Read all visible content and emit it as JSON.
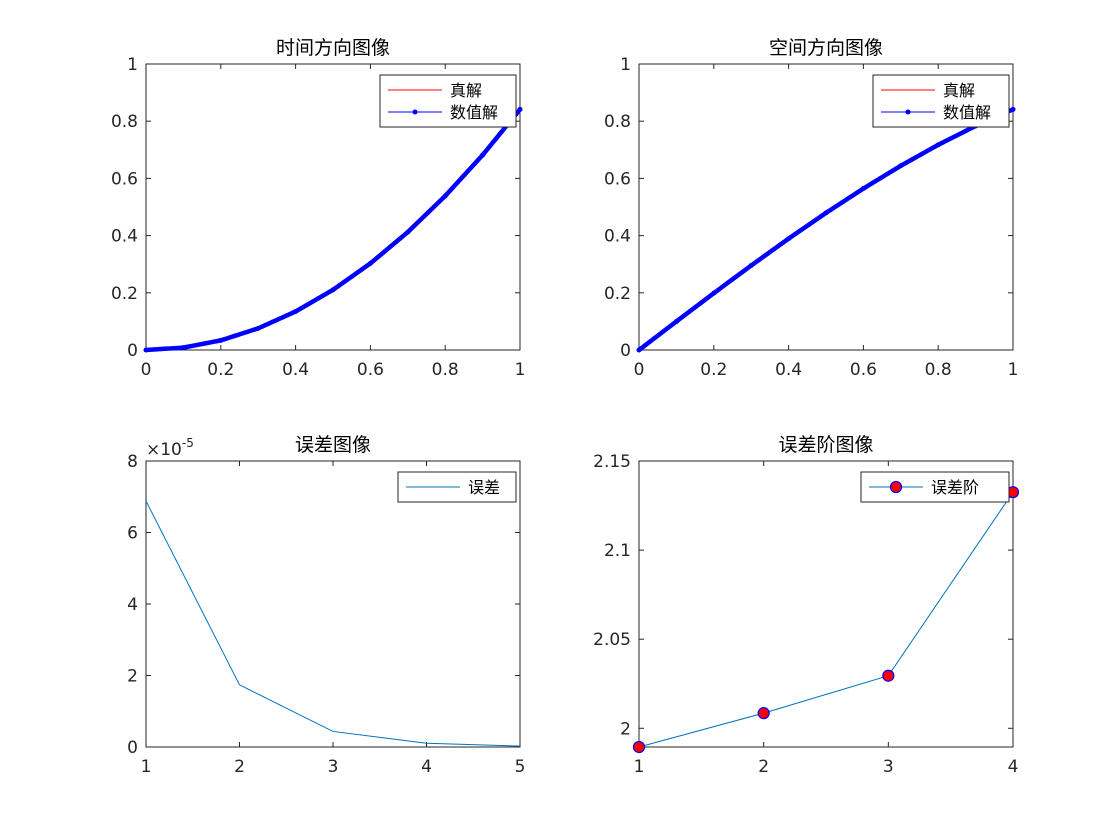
{
  "colors": {
    "exact": "#ff0000",
    "numeric": "#0000ff",
    "error_line": "#0072bd",
    "marker_fill": "#ff0000",
    "marker_edge": "#0000ff",
    "axis": "#262626"
  },
  "chart_data": [
    {
      "type": "line",
      "title": "时间方向图像",
      "xlabel": "",
      "ylabel": "",
      "xlim": [
        0,
        1
      ],
      "ylim": [
        0,
        1
      ],
      "grid": false,
      "legend_placement": "top-right",
      "xticks": [
        0,
        0.2,
        0.4,
        0.6,
        0.8,
        1
      ],
      "xtick_labels": [
        "0",
        "0.2",
        "0.4",
        "0.6",
        "0.8",
        "1"
      ],
      "yticks": [
        0,
        0.2,
        0.4,
        0.6,
        0.8,
        1
      ],
      "ytick_labels": [
        "0",
        "0.2",
        "0.4",
        "0.6",
        "0.8",
        "1"
      ],
      "series": [
        {
          "name": "真解",
          "style": "line",
          "x": [
            0,
            0.1,
            0.2,
            0.3,
            0.4,
            0.5,
            0.6,
            0.7,
            0.8,
            0.9,
            1.0
          ],
          "y": [
            0,
            0.0084,
            0.0336,
            0.0757,
            0.1346,
            0.2104,
            0.3029,
            0.4123,
            0.5386,
            0.6816,
            0.8415
          ]
        },
        {
          "name": "数值解",
          "style": "line-dot",
          "x": [
            0,
            0.1,
            0.2,
            0.3,
            0.4,
            0.5,
            0.6,
            0.7,
            0.8,
            0.9,
            1.0
          ],
          "y": [
            0,
            0.0084,
            0.0336,
            0.0757,
            0.1346,
            0.2104,
            0.3029,
            0.4123,
            0.5386,
            0.6816,
            0.8415
          ]
        }
      ]
    },
    {
      "type": "line",
      "title": "空间方向图像",
      "xlabel": "",
      "ylabel": "",
      "xlim": [
        0,
        1
      ],
      "ylim": [
        0,
        1
      ],
      "grid": false,
      "legend_placement": "top-right",
      "xticks": [
        0,
        0.2,
        0.4,
        0.6,
        0.8,
        1
      ],
      "xtick_labels": [
        "0",
        "0.2",
        "0.4",
        "0.6",
        "0.8",
        "1"
      ],
      "yticks": [
        0,
        0.2,
        0.4,
        0.6,
        0.8,
        1
      ],
      "ytick_labels": [
        "0",
        "0.2",
        "0.4",
        "0.6",
        "0.8",
        "1"
      ],
      "series": [
        {
          "name": "真解",
          "style": "line",
          "x": [
            0,
            0.1,
            0.2,
            0.3,
            0.4,
            0.5,
            0.6,
            0.7,
            0.8,
            0.9,
            1.0
          ],
          "y": [
            0,
            0.0998,
            0.1987,
            0.2955,
            0.3894,
            0.4794,
            0.5646,
            0.6442,
            0.7174,
            0.7833,
            0.8415
          ]
        },
        {
          "name": "数值解",
          "style": "line-dot",
          "x": [
            0,
            0.1,
            0.2,
            0.3,
            0.4,
            0.5,
            0.6,
            0.7,
            0.8,
            0.9,
            1.0
          ],
          "y": [
            0,
            0.0998,
            0.1987,
            0.2955,
            0.3894,
            0.4794,
            0.5646,
            0.6442,
            0.7174,
            0.7833,
            0.8415
          ]
        }
      ]
    },
    {
      "type": "line",
      "title": "误差图像",
      "xlabel": "",
      "ylabel": "",
      "xlim": [
        1,
        5
      ],
      "ylim": [
        0,
        8e-05
      ],
      "grid": false,
      "legend_placement": "top-right",
      "y_exponent": {
        "base": "×10",
        "power": "-5"
      },
      "xticks": [
        1,
        2,
        3,
        4,
        5
      ],
      "xtick_labels": [
        "1",
        "2",
        "3",
        "4",
        "5"
      ],
      "yticks": [
        0,
        2e-05,
        4e-05,
        6e-05,
        8e-05
      ],
      "ytick_labels": [
        "0",
        "2",
        "4",
        "6",
        "8"
      ],
      "series": [
        {
          "name": "误差",
          "style": "line",
          "x": [
            1,
            2,
            3,
            4,
            5
          ],
          "y": [
            6.88e-05,
            1.74e-05,
            4.35e-06,
            1.05e-06,
            2.4e-07
          ]
        }
      ]
    },
    {
      "type": "line",
      "title": "误差阶图像",
      "xlabel": "",
      "ylabel": "",
      "xlim": [
        1,
        4
      ],
      "ylim": [
        1.9895,
        2.15
      ],
      "grid": false,
      "legend_placement": "top-right",
      "xticks": [
        1,
        2,
        3,
        4
      ],
      "xtick_labels": [
        "1",
        "2",
        "3",
        "4"
      ],
      "yticks": [
        2,
        2.05,
        2.1,
        2.15
      ],
      "ytick_labels": [
        "2",
        "2.05",
        "2.1",
        "2.15"
      ],
      "series": [
        {
          "name": "误差阶",
          "style": "line-marker",
          "x": [
            1,
            2,
            3,
            4
          ],
          "y": [
            1.9895,
            2.0085,
            2.0295,
            2.1325
          ]
        }
      ]
    }
  ]
}
